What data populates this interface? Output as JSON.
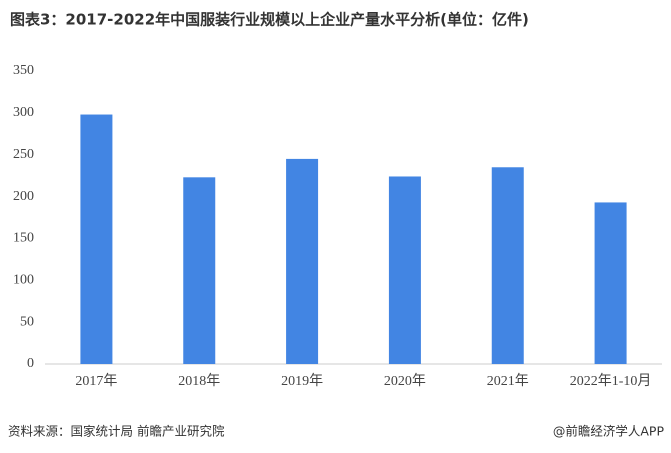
{
  "chart_data": {
    "type": "bar",
    "title": "图表3：2017-2022年中国服装行业规模以上企业产量水平分析(单位：亿件)",
    "categories": [
      "2017年",
      "2018年",
      "2019年",
      "2020年",
      "2021年",
      "2022年1-10月"
    ],
    "values": [
      298,
      223,
      245,
      224,
      235,
      193
    ],
    "color": "#4285e3",
    "ylim": [
      0,
      350
    ],
    "yticks": [
      0,
      50,
      100,
      150,
      200,
      250,
      300,
      350
    ],
    "grid": false,
    "source": "资料来源：国家统计局 前瞻产业研究院",
    "credit": "@前瞻经济学人APP"
  }
}
